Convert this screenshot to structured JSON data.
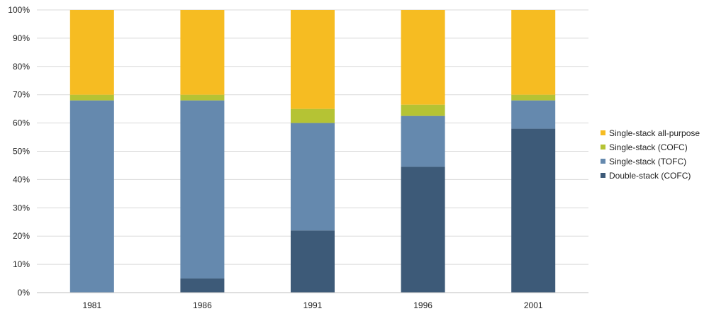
{
  "chart_data": {
    "type": "bar",
    "stacked": true,
    "percent": true,
    "categories": [
      "1981",
      "1986",
      "1991",
      "1996",
      "2001"
    ],
    "series": [
      {
        "name": "Double-stack (COFC)",
        "color": "#3d5a78",
        "values": [
          0,
          5,
          22,
          44.5,
          58
        ]
      },
      {
        "name": "Single-stack (TOFC)",
        "color": "#6589ae",
        "values": [
          68,
          63,
          38,
          18,
          10
        ]
      },
      {
        "name": "Single-stack (COFC)",
        "color": "#b5c334",
        "values": [
          2,
          2,
          5,
          4,
          2
        ]
      },
      {
        "name": "Single-stack all-purpose",
        "color": "#f6bc22",
        "values": [
          30,
          30,
          35,
          33.5,
          30
        ]
      }
    ],
    "ylim": [
      0,
      100
    ],
    "yticks": [
      "0%",
      "10%",
      "20%",
      "30%",
      "40%",
      "50%",
      "60%",
      "70%",
      "80%",
      "90%",
      "100%"
    ],
    "grid": true,
    "legend_position": "right",
    "legend_order": [
      "Single-stack all-purpose",
      "Single-stack (COFC)",
      "Single-stack (TOFC)",
      "Double-stack (COFC)"
    ]
  }
}
